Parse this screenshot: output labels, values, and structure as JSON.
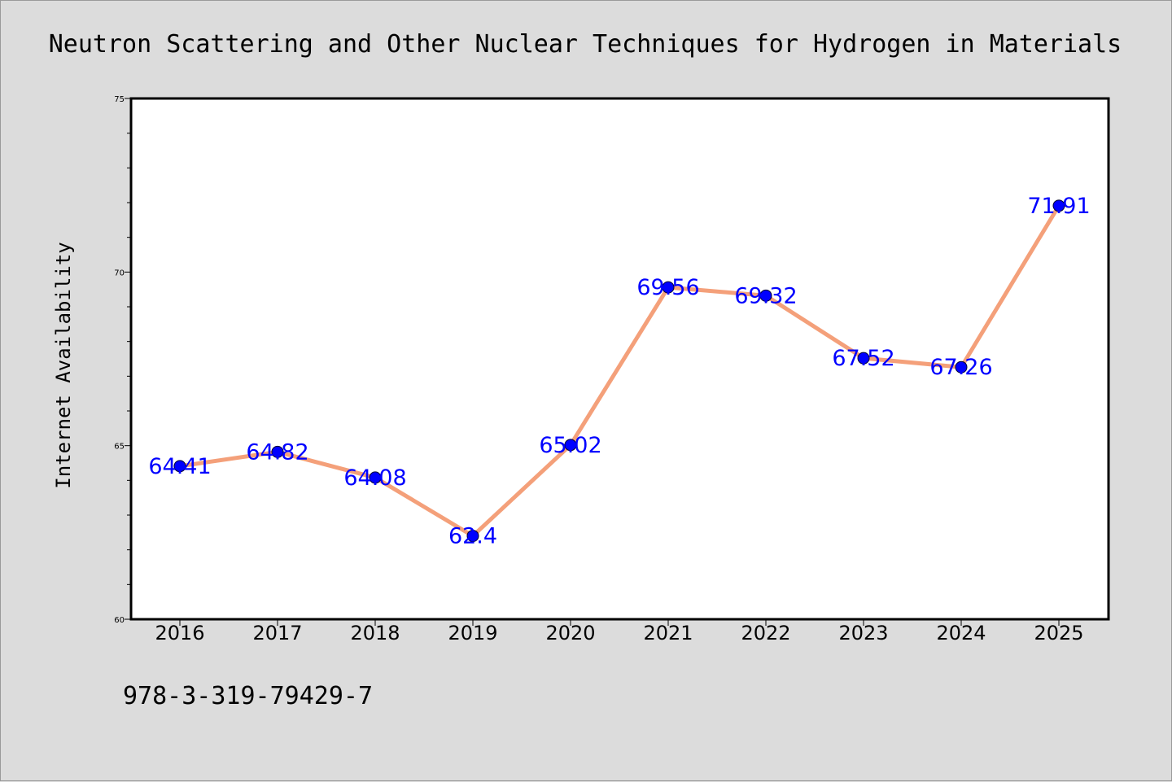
{
  "chart_data": {
    "type": "line",
    "title": "Neutron Scattering and Other Nuclear Techniques for Hydrogen in Materials",
    "xlabel": "",
    "ylabel": "Internet Availability",
    "categories": [
      "2016",
      "2017",
      "2018",
      "2019",
      "2020",
      "2021",
      "2022",
      "2023",
      "2024",
      "2025"
    ],
    "series": [
      {
        "values": [
          64.41,
          64.82,
          64.08,
          62.4,
          65.02,
          69.56,
          69.32,
          67.52,
          67.26,
          71.91
        ],
        "labels": [
          "64.41",
          "64.82",
          "64.08",
          "62.4",
          "65.02",
          "69.56",
          "69.32",
          "67.52",
          "67.26",
          "71.91"
        ],
        "line_color": "#f4a07a",
        "marker_color": "#0000ff",
        "label_color": "#0000ff"
      }
    ],
    "ylim": [
      60,
      75
    ],
    "yticks": [
      "60",
      "65",
      "70",
      "75"
    ],
    "grid": false,
    "legend": "none"
  },
  "footer": {
    "isbn": "978-3-319-79429-7"
  },
  "colors": {
    "background": "#dcdcdc",
    "plot_background": "#ffffff"
  }
}
